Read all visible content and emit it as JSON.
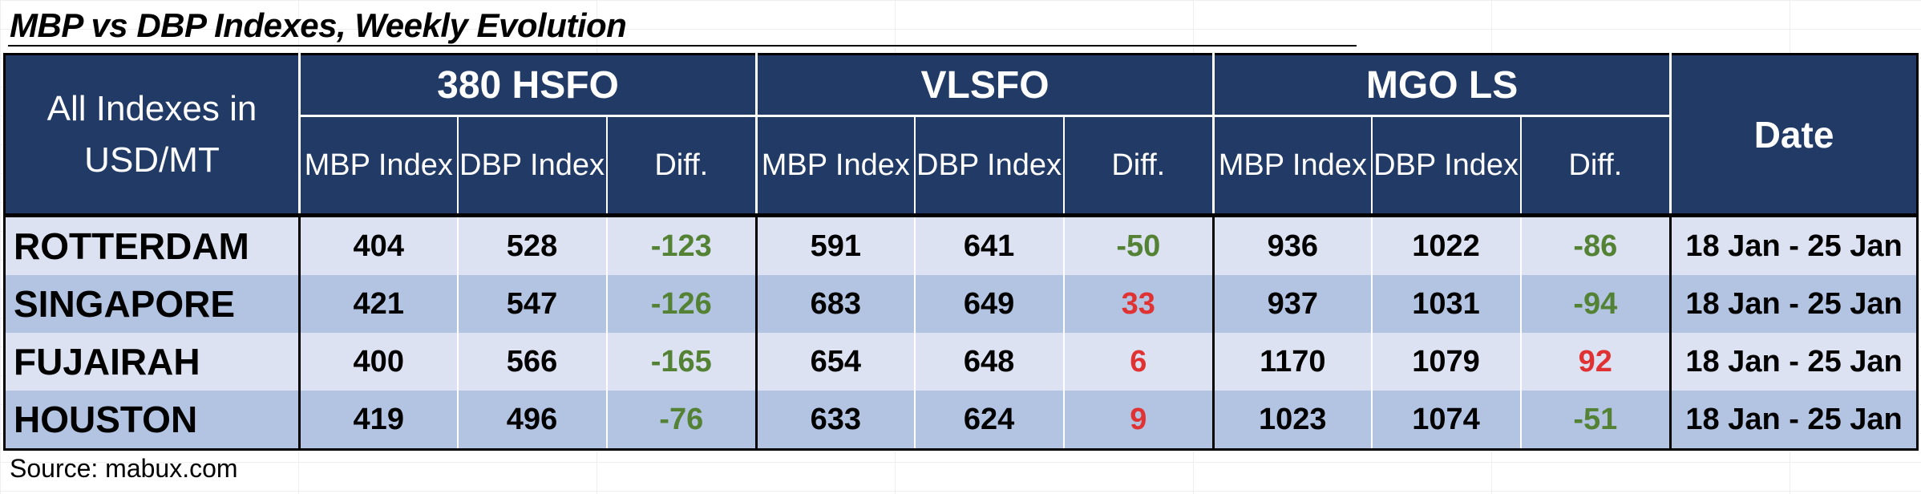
{
  "title": "MBP vs DBP Indexes, Weekly Evolution",
  "source": "Source: mabux.com",
  "colors": {
    "header_bg": "#223a66",
    "row_light": "#dce2f1",
    "row_dark": "#b3c4e3",
    "positive_diff": "#e03232",
    "negative_diff": "#548235"
  },
  "chart_data": {
    "type": "table",
    "corner_label_line1": "All Indexes in",
    "corner_label_line2": "USD/MT",
    "groups": [
      "380 HSFO",
      "VLSFO",
      "MGO LS"
    ],
    "subcolumns": [
      "MBP Index",
      "DBP Index",
      "Diff."
    ],
    "date_header": "Date",
    "rows": [
      {
        "port": "ROTTERDAM",
        "hsfo": {
          "mbp": "404",
          "dbp": "528",
          "diff": "-123"
        },
        "vlsfo": {
          "mbp": "591",
          "dbp": "641",
          "diff": "-50"
        },
        "mgo": {
          "mbp": "936",
          "dbp": "1022",
          "diff": "-86"
        },
        "date": "18 Jan - 25 Jan"
      },
      {
        "port": "SINGAPORE",
        "hsfo": {
          "mbp": "421",
          "dbp": "547",
          "diff": "-126"
        },
        "vlsfo": {
          "mbp": "683",
          "dbp": "649",
          "diff": "33"
        },
        "mgo": {
          "mbp": "937",
          "dbp": "1031",
          "diff": "-94"
        },
        "date": "18 Jan - 25 Jan"
      },
      {
        "port": "FUJAIRAH",
        "hsfo": {
          "mbp": "400",
          "dbp": "566",
          "diff": "-165"
        },
        "vlsfo": {
          "mbp": "654",
          "dbp": "648",
          "diff": "6"
        },
        "mgo": {
          "mbp": "1170",
          "dbp": "1079",
          "diff": "92"
        },
        "date": "18 Jan - 25 Jan"
      },
      {
        "port": "HOUSTON",
        "hsfo": {
          "mbp": "419",
          "dbp": "496",
          "diff": "-76"
        },
        "vlsfo": {
          "mbp": "633",
          "dbp": "624",
          "diff": "9"
        },
        "mgo": {
          "mbp": "1023",
          "dbp": "1074",
          "diff": "-51"
        },
        "date": "18 Jan - 25 Jan"
      }
    ]
  }
}
